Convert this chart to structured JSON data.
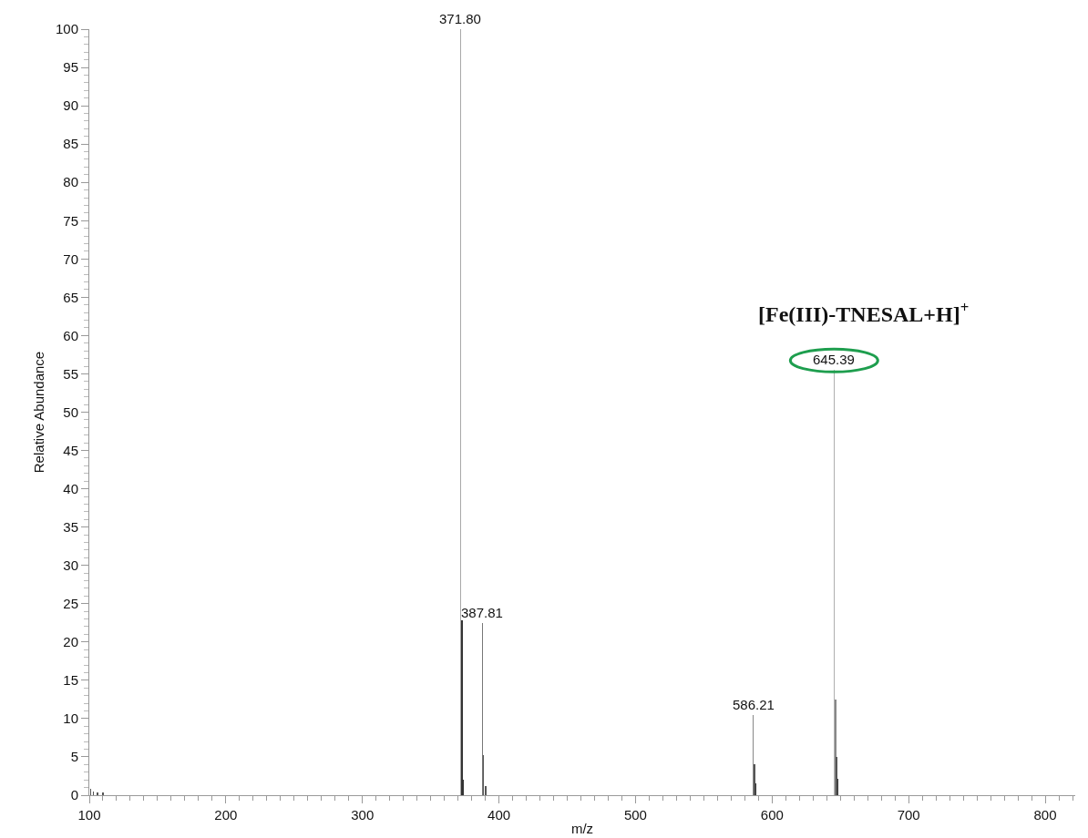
{
  "chart_data": {
    "type": "bar",
    "xlabel": "m/z",
    "ylabel": "Relative Abundance",
    "x": [
      101,
      103,
      106,
      110,
      371.8,
      372.8,
      373.6,
      387.81,
      388.8,
      390.2,
      586.21,
      587.2,
      588,
      645.39,
      646.4,
      647.1,
      648
    ],
    "values": [
      0.8,
      0.5,
      0.4,
      0.3,
      100,
      22.8,
      2,
      22.5,
      5.2,
      1.2,
      10.5,
      4,
      1.6,
      55.5,
      12.5,
      5,
      2.2
    ],
    "colors": [
      "#555555",
      "#555555",
      "#555555",
      "#555555",
      "#a8a8a8",
      "#333333",
      "#333333",
      "#777777",
      "#555555",
      "#555555",
      "#888888",
      "#555555",
      "#333333",
      "#b0b0b0",
      "#888888",
      "#555555",
      "#333333"
    ],
    "xlim": [
      100,
      822
    ],
    "xticks": [
      100,
      200,
      300,
      400,
      500,
      600,
      700,
      800
    ],
    "ylim": [
      0,
      100
    ],
    "yticks": [
      0,
      5,
      10,
      15,
      20,
      25,
      30,
      35,
      40,
      45,
      50,
      55,
      60,
      65,
      70,
      75,
      80,
      85,
      90,
      95,
      100
    ],
    "annotations": [
      "[Fe(III)-TNESAL+H]$^{+}$",
      {
        "text": "371.80",
        "x": 371.8,
        "y": 100
      },
      {
        "text": "387.81",
        "x": 387.81,
        "y": 22.5
      },
      {
        "text": "586.21",
        "x": 586.21,
        "y": 10.5
      },
      {
        "text": "645.39",
        "x": 645.39,
        "y": 55.5
      }
    ]
  }
}
